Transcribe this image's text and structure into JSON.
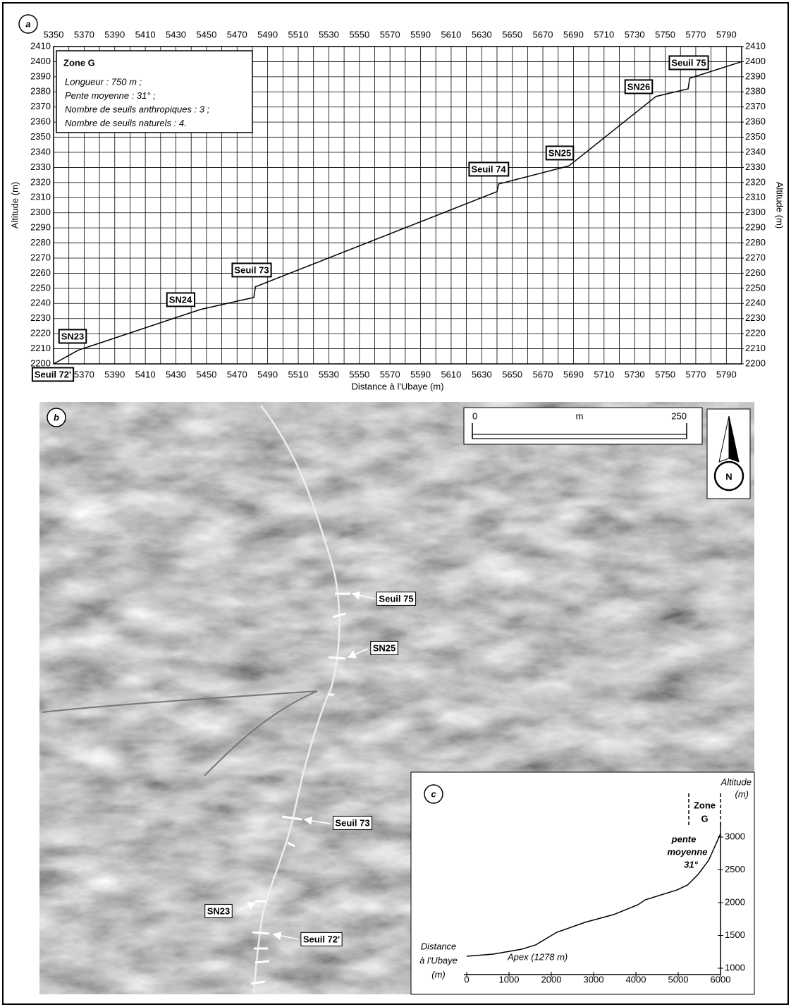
{
  "chart_data": [
    {
      "type": "line",
      "panel_label": "a",
      "xlabel": "Distance à l'Ubaye (m)",
      "ylabel": "Altitude (m)",
      "y2label": "Altitude (m)",
      "x": [
        5350,
        5366,
        5446,
        5481,
        5482,
        5640,
        5641,
        5687,
        5744,
        5765,
        5766,
        5800
      ],
      "values": [
        2200,
        2209,
        2236,
        2244,
        2251,
        2314,
        2319,
        2331,
        2377,
        2382,
        2389,
        2400
      ],
      "color": "#000000",
      "xlim": [
        5350,
        5800
      ],
      "xticks": [
        5350,
        5370,
        5390,
        5410,
        5430,
        5450,
        5470,
        5490,
        5510,
        5530,
        5550,
        5570,
        5590,
        5610,
        5630,
        5650,
        5670,
        5690,
        5710,
        5730,
        5750,
        5770,
        5790
      ],
      "xminorticks": [
        5360,
        5380,
        5400,
        5420,
        5440,
        5460,
        5480,
        5500,
        5520,
        5540,
        5560,
        5580,
        5600,
        5620,
        5640,
        5660,
        5680,
        5700,
        5720,
        5740,
        5760,
        5780,
        5800
      ],
      "ylim": [
        2200,
        2410
      ],
      "yticks": [
        2200,
        2210,
        2220,
        2230,
        2240,
        2250,
        2260,
        2270,
        2280,
        2290,
        2300,
        2310,
        2320,
        2330,
        2340,
        2350,
        2360,
        2370,
        2380,
        2390,
        2400,
        2410
      ],
      "y2lim": [
        2200,
        2410
      ],
      "y2ticks": [
        2200,
        2210,
        2220,
        2230,
        2240,
        2250,
        2260,
        2270,
        2280,
        2290,
        2300,
        2310,
        2320,
        2330,
        2340,
        2350,
        2360,
        2370,
        2380,
        2390,
        2400,
        2410
      ],
      "grid": true,
      "info_box": {
        "title": "Zone G",
        "lines": [
          "Longueur : 750 m ;",
          "Pente moyenne : 31° ;",
          "Nombre de seuils anthropiques : 3 ;",
          "Nombre de seuils naturels : 4."
        ]
      },
      "annotations": [
        "SN23",
        "SN24",
        "Seuil 73",
        "Seuil 74",
        "SN25",
        "SN26",
        "Seuil 75",
        "Seuil 72'"
      ]
    },
    {
      "type": "line",
      "panel_label": "c",
      "xlabel_lines": [
        "Distance",
        "à l'Ubaye",
        "(m)"
      ],
      "ylabel_lines": [
        "Altitude",
        "(m)"
      ],
      "x": [
        0,
        630,
        1300,
        1630,
        2130,
        2800,
        3470,
        4050,
        4220,
        4970,
        5220,
        5470,
        5720,
        6000
      ],
      "values": [
        1183,
        1215,
        1290,
        1355,
        1548,
        1700,
        1817,
        1968,
        2043,
        2193,
        2269,
        2430,
        2645,
        3050
      ],
      "color": "#000000",
      "xlim": [
        0,
        6000
      ],
      "xticks": [
        0,
        1000,
        2000,
        3000,
        4000,
        5000,
        6000
      ],
      "ylim": [
        1000,
        3000
      ],
      "yticks": [
        1000,
        1500,
        2000,
        2500,
        3000
      ],
      "zone": {
        "label_lines": [
          "Zone",
          "G"
        ],
        "x": [
          5250,
          6000
        ]
      },
      "slope_label_lines": [
        "pente",
        "moyenne",
        "31°"
      ],
      "apex_label": "Apex (1278 m)"
    }
  ],
  "photo": {
    "panel_label": "b",
    "scale": {
      "ticks": [
        0,
        250
      ],
      "unit": "m"
    },
    "north": "N",
    "annotations": [
      "Seuil 75",
      "SN25",
      "Seuil 73",
      "SN23",
      "Seuil 72'"
    ]
  }
}
